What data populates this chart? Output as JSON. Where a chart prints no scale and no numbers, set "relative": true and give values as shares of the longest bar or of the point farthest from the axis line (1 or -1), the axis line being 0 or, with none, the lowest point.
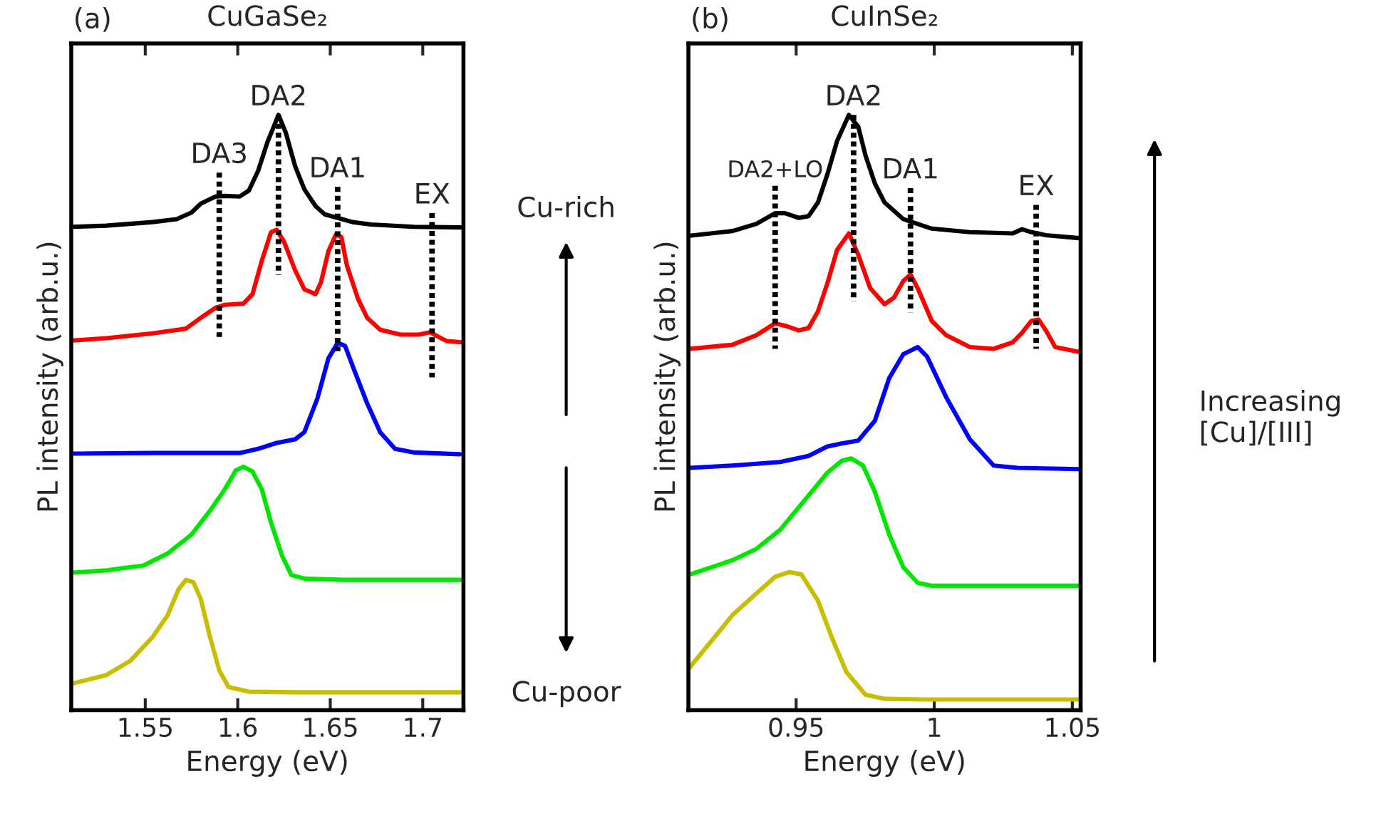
{
  "chart_data": [
    {
      "type": "line",
      "title": "CuGaSe₂",
      "xlabel": "Energy (eV)",
      "ylabel": "PL intensity (arb.u.)",
      "relative": true,
      "xlim": [
        1.51,
        1.722
      ],
      "xticks": [
        1.55,
        1.6,
        1.65,
        1.7
      ],
      "grid": false,
      "legend": false,
      "marker": "none",
      "line_style": "solid",
      "series": [
        {
          "color": "#000000",
          "x": [
            1.511,
            1.529,
            1.554,
            1.567,
            1.575,
            1.58,
            1.588,
            1.593,
            1.601,
            1.606,
            1.611,
            1.616,
            1.622,
            1.626,
            1.631,
            1.636,
            1.642,
            1.647,
            1.654,
            1.662,
            1.672,
            1.695,
            1.721
          ],
          "values": [
            0.812,
            0.814,
            0.82,
            0.825,
            0.836,
            0.851,
            0.863,
            0.864,
            0.863,
            0.873,
            0.906,
            0.954,
            1.0,
            0.97,
            0.914,
            0.875,
            0.847,
            0.833,
            0.827,
            0.82,
            0.816,
            0.812,
            0.811
          ]
        },
        {
          "color": "#ff0000",
          "x": [
            1.511,
            1.529,
            1.554,
            1.572,
            1.58,
            1.588,
            1.593,
            1.603,
            1.608,
            1.613,
            1.618,
            1.621,
            1.625,
            1.631,
            1.636,
            1.642,
            1.645,
            1.649,
            1.653,
            1.656,
            1.659,
            1.665,
            1.67,
            1.677,
            1.688,
            1.698,
            1.704,
            1.708,
            1.713,
            1.721
          ],
          "values": [
            0.621,
            0.625,
            0.633,
            0.641,
            0.659,
            0.676,
            0.681,
            0.683,
            0.699,
            0.755,
            0.803,
            0.807,
            0.787,
            0.739,
            0.707,
            0.699,
            0.719,
            0.771,
            0.799,
            0.795,
            0.747,
            0.691,
            0.659,
            0.639,
            0.631,
            0.631,
            0.635,
            0.628,
            0.62,
            0.618
          ]
        },
        {
          "color": "#0000ff",
          "x": [
            1.511,
            1.554,
            1.601,
            1.611,
            1.621,
            1.631,
            1.636,
            1.643,
            1.649,
            1.654,
            1.658,
            1.663,
            1.67,
            1.677,
            1.685,
            1.695,
            1.72
          ],
          "values": [
            0.431,
            0.432,
            0.432,
            0.439,
            0.449,
            0.455,
            0.467,
            0.523,
            0.591,
            0.617,
            0.612,
            0.571,
            0.515,
            0.467,
            0.439,
            0.433,
            0.43
          ]
        },
        {
          "color": "#00e600",
          "x": [
            1.511,
            1.529,
            1.549,
            1.562,
            1.575,
            1.585,
            1.593,
            1.599,
            1.603,
            1.608,
            1.613,
            1.618,
            1.624,
            1.629,
            1.636,
            1.657,
            1.721
          ],
          "values": [
            0.231,
            0.235,
            0.243,
            0.263,
            0.295,
            0.335,
            0.371,
            0.403,
            0.409,
            0.401,
            0.371,
            0.315,
            0.259,
            0.227,
            0.221,
            0.219,
            0.219
          ]
        },
        {
          "color": "#c8be00",
          "x": [
            1.511,
            1.529,
            1.542,
            1.554,
            1.562,
            1.568,
            1.572,
            1.576,
            1.58,
            1.585,
            1.59,
            1.595,
            1.606,
            1.631,
            1.721
          ],
          "values": [
            0.045,
            0.059,
            0.083,
            0.123,
            0.159,
            0.203,
            0.219,
            0.215,
            0.187,
            0.123,
            0.067,
            0.039,
            0.031,
            0.03,
            0.03
          ]
        },
        {
          "color": "#000000",
          "line_style": "dotted",
          "x": [
            1.59,
            1.59
          ],
          "values": [
            0.903,
            0.627
          ]
        },
        {
          "color": "#000000",
          "line_style": "dotted",
          "x": [
            1.622,
            1.622
          ],
          "values": [
            1.0,
            0.731
          ]
        },
        {
          "color": "#000000",
          "line_style": "dotted",
          "x": [
            1.654,
            1.654
          ],
          "values": [
            0.879,
            0.603
          ]
        },
        {
          "color": "#000000",
          "line_style": "dotted",
          "x": [
            1.705,
            1.705
          ],
          "values": [
            0.835,
            0.559
          ]
        }
      ],
      "annotations": [
        "(a)",
        "Cu-rich",
        "Cu-poor",
        {
          "text": "DA3",
          "x": 1.59,
          "y": 0.903
        },
        {
          "text": "DA2",
          "x": 1.622,
          "y": 1.0
        },
        {
          "text": "DA1",
          "x": 1.654,
          "y": 0.879
        },
        {
          "text": "EX",
          "x": 1.705,
          "y": 0.835
        }
      ]
    },
    {
      "type": "line",
      "title": "CuInSe₂",
      "xlabel": "Energy (eV)",
      "ylabel": "PL intensity (arb.u.)",
      "relative": true,
      "xlim": [
        0.911,
        1.053
      ],
      "xticks": [
        0.95,
        1,
        1.05
      ],
      "grid": false,
      "legend": false,
      "marker": "none",
      "line_style": "solid",
      "series": [
        {
          "color": "#000000",
          "x": [
            0.9115,
            0.927,
            0.9356,
            0.9424,
            0.9459,
            0.951,
            0.9545,
            0.9579,
            0.9613,
            0.9648,
            0.9691,
            0.9725,
            0.9751,
            0.9785,
            0.982,
            0.9888,
            0.9991,
            1.0129,
            1.0284,
            1.0318,
            1.0352,
            1.0404,
            1.0524
          ],
          "values": [
            0.797,
            0.805,
            0.817,
            0.835,
            0.835,
            0.827,
            0.83,
            0.853,
            0.9,
            0.956,
            1.0,
            0.98,
            0.932,
            0.885,
            0.853,
            0.825,
            0.809,
            0.803,
            0.801,
            0.808,
            0.803,
            0.798,
            0.793
          ]
        },
        {
          "color": "#ff0000",
          "x": [
            0.9115,
            0.927,
            0.9356,
            0.9424,
            0.9459,
            0.951,
            0.9545,
            0.9579,
            0.9613,
            0.9648,
            0.9691,
            0.9725,
            0.9768,
            0.982,
            0.9854,
            0.9888,
            0.9914,
            0.994,
            0.9991,
            1.0043,
            1.0129,
            1.0215,
            1.0284,
            1.0318,
            1.0352,
            1.0378,
            1.0404,
            1.0438,
            1.0524
          ],
          "values": [
            0.607,
            0.614,
            0.63,
            0.65,
            0.646,
            0.638,
            0.642,
            0.67,
            0.717,
            0.773,
            0.801,
            0.765,
            0.709,
            0.682,
            0.693,
            0.721,
            0.732,
            0.709,
            0.654,
            0.63,
            0.61,
            0.607,
            0.618,
            0.634,
            0.654,
            0.656,
            0.638,
            0.61,
            0.602
          ]
        },
        {
          "color": "#0000ff",
          "x": [
            0.9115,
            0.927,
            0.9442,
            0.9545,
            0.9613,
            0.9665,
            0.9725,
            0.9785,
            0.9837,
            0.9888,
            0.994,
            0.9974,
            1.0043,
            1.0129,
            1.0215,
            1.0301,
            1.0524
          ],
          "values": [
            0.407,
            0.411,
            0.417,
            0.427,
            0.443,
            0.448,
            0.453,
            0.486,
            0.558,
            0.598,
            0.61,
            0.594,
            0.526,
            0.455,
            0.411,
            0.407,
            0.405
          ]
        },
        {
          "color": "#00e600",
          "x": [
            0.9115,
            0.927,
            0.9356,
            0.9442,
            0.9528,
            0.9613,
            0.9665,
            0.9699,
            0.9742,
            0.9785,
            0.9837,
            0.9888,
            0.994,
            0.9991,
            1.0524
          ],
          "values": [
            0.228,
            0.252,
            0.271,
            0.303,
            0.351,
            0.399,
            0.419,
            0.423,
            0.411,
            0.367,
            0.295,
            0.24,
            0.214,
            0.209,
            0.209
          ]
        },
        {
          "color": "#c8be00",
          "x": [
            0.9115,
            0.92,
            0.927,
            0.9356,
            0.9424,
            0.9476,
            0.9519,
            0.9579,
            0.9631,
            0.9682,
            0.9751,
            0.982,
            0.9957,
            1.0524
          ],
          "values": [
            0.072,
            0.12,
            0.16,
            0.196,
            0.224,
            0.232,
            0.228,
            0.184,
            0.12,
            0.064,
            0.026,
            0.019,
            0.018,
            0.018
          ]
        },
        {
          "color": "#000000",
          "line_style": "dotted",
          "x": [
            0.9424,
            0.9424
          ],
          "values": [
            0.881,
            0.607
          ]
        },
        {
          "color": "#000000",
          "line_style": "dotted",
          "x": [
            0.9708,
            0.9708
          ],
          "values": [
            1.0,
            0.687
          ]
        },
        {
          "color": "#000000",
          "line_style": "dotted",
          "x": [
            0.9914,
            0.9914
          ],
          "values": [
            0.877,
            0.668
          ]
        },
        {
          "color": "#000000",
          "line_style": "dotted",
          "x": [
            1.0369,
            1.0369
          ],
          "values": [
            0.849,
            0.607
          ]
        }
      ],
      "annotations": [
        "(b)",
        "Increasing\n[Cu]/[III]",
        {
          "text": "DA2+LO",
          "x": 0.9424,
          "y": 0.881
        },
        {
          "text": "DA2",
          "x": 0.9708,
          "y": 1.0
        },
        {
          "text": "DA1",
          "x": 0.9914,
          "y": 0.877
        },
        {
          "text": "EX",
          "x": 1.0369,
          "y": 0.849
        }
      ]
    }
  ]
}
